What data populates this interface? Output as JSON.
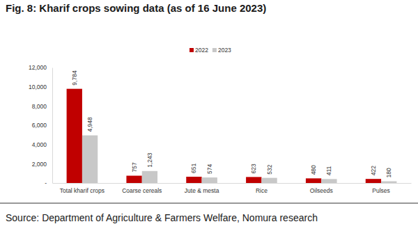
{
  "chart_data": {
    "type": "bar",
    "title": "Fig. 8: Kharif crops sowing data (as of 16 June 2023)",
    "source": "Source: Department of Agriculture & Farmers Welfare, Nomura research",
    "categories": [
      "Total kharif crops",
      "Coarse cereals",
      "Jute & mesta",
      "Rice",
      "Oilseeds",
      "Pulses"
    ],
    "series": [
      {
        "name": "2022",
        "color": "#c00000",
        "values": [
          9784,
          757,
          651,
          623,
          480,
          422
        ],
        "value_labels": [
          "9,784",
          "757",
          "651",
          "623",
          "480",
          "422"
        ]
      },
      {
        "name": "2023",
        "color": "#c8c8c8",
        "values": [
          4948,
          1243,
          574,
          532,
          411,
          180
        ],
        "value_labels": [
          "4,948",
          "1,243",
          "574",
          "532",
          "411",
          "180"
        ]
      }
    ],
    "ylim": [
      0,
      12000
    ],
    "yticks": [
      {
        "value": 0,
        "label": "-"
      },
      {
        "value": 2000,
        "label": "2,000"
      },
      {
        "value": 4000,
        "label": "4,000"
      },
      {
        "value": 6000,
        "label": "6,000"
      },
      {
        "value": 8000,
        "label": "8,000"
      },
      {
        "value": 10000,
        "label": "10,000"
      },
      {
        "value": 12000,
        "label": "12,000"
      }
    ],
    "grid": false,
    "legend": "top",
    "data_labels": true
  }
}
